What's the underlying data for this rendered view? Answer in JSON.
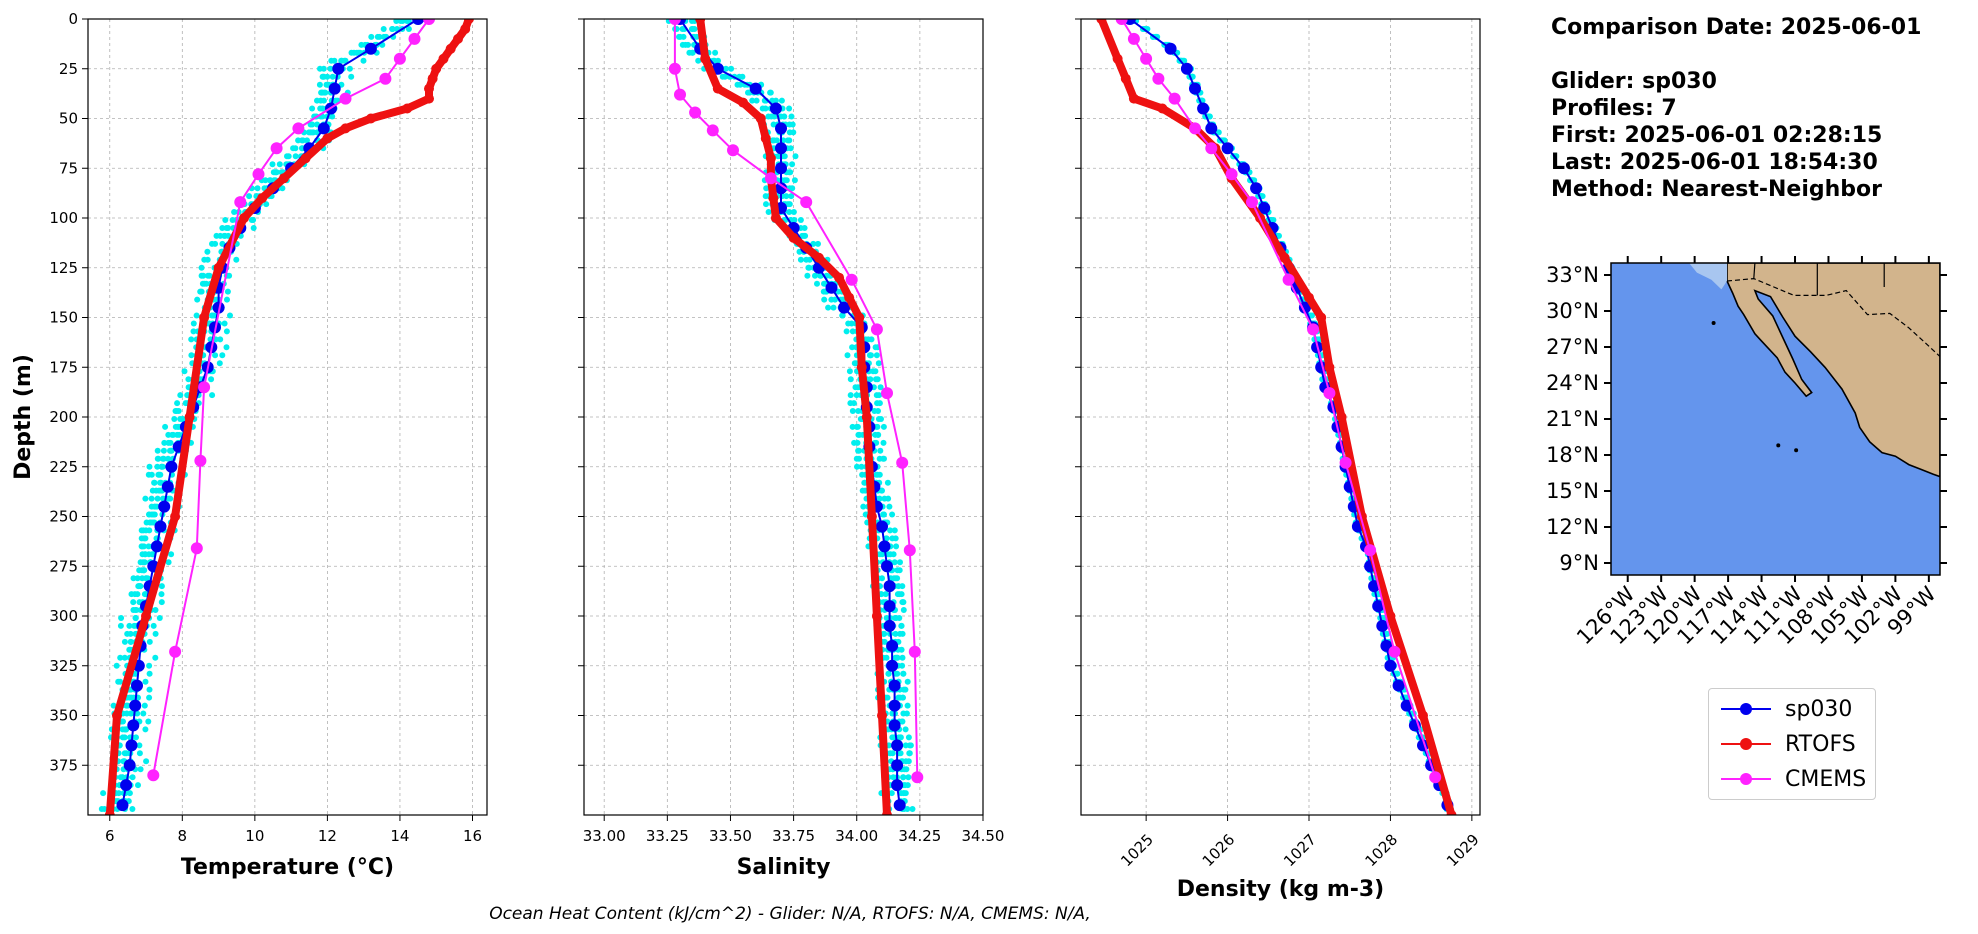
{
  "info": {
    "date_line": "Comparison Date: 2025-06-01",
    "glider_line": "Glider: sp030",
    "profiles_line": "Profiles: 7",
    "first_line": "First: 2025-06-01 02:28:15",
    "last_line": "Last: 2025-06-01 18:54:30",
    "method_line": "Method: Nearest-Neighbor"
  },
  "footer": "Ocean Heat Content (kJ/cm^2) - Glider: N/A,  RTOFS: N/A,  CMEMS: N/A,",
  "colors": {
    "sp030": "#0000ee",
    "rtofs": "#ee1111",
    "cmems": "#ff22ff",
    "glider_raw": "#00eeee",
    "land": "#d2b48c",
    "ocean": "#6495ed"
  },
  "legend": [
    {
      "name": "sp030",
      "color": "#0000ee"
    },
    {
      "name": "RTOFS",
      "color": "#ee1111"
    },
    {
      "name": "CMEMS",
      "color": "#ff22ff"
    }
  ],
  "chart_data": [
    {
      "type": "line",
      "xlabel": "Temperature (°C)",
      "ylabel": "Depth (m)",
      "xlim": [
        5.4,
        16.4
      ],
      "ylim": [
        400,
        0
      ],
      "xticks": [
        "6",
        "8",
        "10",
        "12",
        "14",
        "16"
      ],
      "yticks": [
        "0",
        "25",
        "50",
        "75",
        "100",
        "125",
        "150",
        "175",
        "200",
        "225",
        "250",
        "275",
        "300",
        "325",
        "350",
        "375"
      ],
      "grid": true,
      "series": [
        {
          "name": "sp030",
          "depth": [
            0,
            15,
            25,
            35,
            45,
            55,
            65,
            75,
            85,
            95,
            105,
            115,
            125,
            135,
            145,
            155,
            165,
            175,
            185,
            195,
            205,
            215,
            225,
            235,
            245,
            255,
            265,
            275,
            285,
            295,
            305,
            315,
            325,
            335,
            345,
            355,
            365,
            375,
            385,
            395
          ],
          "values": [
            14.5,
            13.2,
            12.3,
            12.2,
            12.1,
            11.9,
            11.5,
            11.0,
            10.5,
            10.0,
            9.6,
            9.3,
            9.1,
            9.0,
            9.0,
            8.9,
            8.8,
            8.7,
            8.5,
            8.3,
            8.1,
            7.9,
            7.7,
            7.6,
            7.5,
            7.4,
            7.3,
            7.2,
            7.1,
            7.0,
            6.9,
            6.85,
            6.8,
            6.75,
            6.7,
            6.65,
            6.6,
            6.55,
            6.45,
            6.35
          ]
        },
        {
          "name": "RTOFS",
          "depth": [
            0,
            5,
            10,
            15,
            20,
            25,
            30,
            35,
            40,
            45,
            50,
            55,
            60,
            70,
            80,
            90,
            100,
            125,
            150,
            200,
            250,
            300,
            350,
            400
          ],
          "values": [
            15.9,
            15.8,
            15.6,
            15.4,
            15.2,
            15.0,
            14.9,
            14.8,
            14.8,
            14.2,
            13.2,
            12.5,
            12.0,
            11.4,
            10.8,
            10.2,
            9.7,
            9.0,
            8.6,
            8.2,
            7.8,
            7.0,
            6.2,
            6.0
          ]
        },
        {
          "name": "CMEMS",
          "depth": [
            0,
            10,
            20,
            30,
            40,
            55,
            65,
            78,
            92,
            185,
            222,
            266,
            318,
            380
          ],
          "values": [
            14.8,
            14.4,
            14.0,
            13.6,
            12.5,
            11.2,
            10.6,
            10.1,
            9.6,
            8.6,
            8.5,
            8.4,
            7.8,
            7.2
          ]
        }
      ]
    },
    {
      "type": "line",
      "xlabel": "Salinity",
      "ylabel": "",
      "xlim": [
        32.92,
        34.5
      ],
      "ylim": [
        400,
        0
      ],
      "xticks": [
        "33.00",
        "33.25",
        "33.50",
        "33.75",
        "34.00",
        "34.25",
        "34.50"
      ],
      "grid": true,
      "series": [
        {
          "name": "sp030",
          "depth": [
            0,
            15,
            25,
            35,
            45,
            55,
            65,
            75,
            85,
            95,
            105,
            115,
            125,
            135,
            145,
            155,
            165,
            175,
            185,
            195,
            205,
            215,
            225,
            235,
            245,
            255,
            265,
            275,
            285,
            295,
            305,
            315,
            325,
            335,
            345,
            355,
            365,
            375,
            385,
            395
          ],
          "values": [
            33.3,
            33.38,
            33.45,
            33.6,
            33.68,
            33.7,
            33.7,
            33.7,
            33.7,
            33.7,
            33.75,
            33.8,
            33.85,
            33.9,
            33.95,
            34.02,
            34.03,
            34.03,
            34.04,
            34.04,
            34.05,
            34.05,
            34.06,
            34.07,
            34.08,
            34.1,
            34.11,
            34.12,
            34.13,
            34.13,
            34.13,
            34.14,
            34.14,
            34.15,
            34.15,
            34.15,
            34.16,
            34.16,
            34.16,
            34.17
          ]
        },
        {
          "name": "RTOFS",
          "depth": [
            0,
            20,
            35,
            42,
            50,
            60,
            70,
            80,
            90,
            100,
            110,
            120,
            130,
            140,
            150,
            175,
            200,
            250,
            300,
            350,
            400
          ],
          "values": [
            33.38,
            33.4,
            33.45,
            33.55,
            33.62,
            33.64,
            33.66,
            33.66,
            33.67,
            33.68,
            33.75,
            33.85,
            33.93,
            33.97,
            34.01,
            34.02,
            34.04,
            34.06,
            34.08,
            34.1,
            34.12
          ]
        },
        {
          "name": "CMEMS",
          "depth": [
            0,
            25,
            38,
            47,
            56,
            66,
            80,
            92,
            131,
            156,
            188,
            223,
            267,
            318,
            381
          ],
          "values": [
            33.28,
            33.28,
            33.3,
            33.36,
            33.43,
            33.51,
            33.66,
            33.8,
            33.98,
            34.08,
            34.12,
            34.18,
            34.21,
            34.23,
            34.24
          ]
        }
      ]
    },
    {
      "type": "line",
      "xlabel": "Density (kg m-3)",
      "ylabel": "",
      "xlim": [
        1024.2,
        1029.1
      ],
      "ylim": [
        400,
        0
      ],
      "xticks": [
        "1025",
        "1026",
        "1027",
        "1028",
        "1029"
      ],
      "grid": true,
      "series": [
        {
          "name": "sp030",
          "depth": [
            0,
            15,
            25,
            35,
            45,
            55,
            65,
            75,
            85,
            95,
            105,
            115,
            125,
            135,
            145,
            155,
            165,
            175,
            185,
            195,
            205,
            215,
            225,
            235,
            245,
            255,
            265,
            275,
            285,
            295,
            305,
            315,
            325,
            335,
            345,
            355,
            365,
            375,
            385,
            395
          ],
          "values": [
            1024.8,
            1025.3,
            1025.5,
            1025.6,
            1025.7,
            1025.8,
            1026.0,
            1026.2,
            1026.35,
            1026.45,
            1026.55,
            1026.65,
            1026.75,
            1026.85,
            1026.95,
            1027.05,
            1027.1,
            1027.15,
            1027.2,
            1027.3,
            1027.35,
            1027.4,
            1027.45,
            1027.5,
            1027.55,
            1027.6,
            1027.7,
            1027.75,
            1027.8,
            1027.85,
            1027.9,
            1027.95,
            1028.0,
            1028.1,
            1028.2,
            1028.3,
            1028.4,
            1028.5,
            1028.6,
            1028.7
          ]
        },
        {
          "name": "RTOFS",
          "depth": [
            0,
            20,
            30,
            40,
            45,
            55,
            65,
            80,
            100,
            120,
            140,
            150,
            175,
            200,
            250,
            300,
            350,
            400
          ],
          "values": [
            1024.45,
            1024.65,
            1024.75,
            1024.85,
            1025.2,
            1025.6,
            1025.85,
            1026.05,
            1026.4,
            1026.7,
            1027.0,
            1027.15,
            1027.25,
            1027.4,
            1027.65,
            1028.0,
            1028.4,
            1028.75
          ]
        },
        {
          "name": "CMEMS",
          "depth": [
            0,
            10,
            20,
            30,
            40,
            55,
            65,
            78,
            92,
            131,
            156,
            188,
            223,
            267,
            318,
            381
          ],
          "values": [
            1024.7,
            1024.85,
            1025.0,
            1025.15,
            1025.35,
            1025.6,
            1025.8,
            1026.05,
            1026.3,
            1026.75,
            1027.05,
            1027.25,
            1027.45,
            1027.75,
            1028.05,
            1028.55
          ]
        }
      ]
    },
    {
      "type": "map",
      "lat_ticks": [
        "33°N",
        "30°N",
        "27°N",
        "24°N",
        "21°N",
        "18°N",
        "15°N",
        "12°N",
        "9°N"
      ],
      "lon_ticks": [
        "126°W",
        "123°W",
        "120°W",
        "117°W",
        "114°W",
        "111°W",
        "108°W",
        "105°W",
        "102°W",
        "99°W"
      ],
      "lat_range": [
        8,
        34
      ],
      "lon_range": [
        -127.5,
        -98
      ]
    }
  ]
}
